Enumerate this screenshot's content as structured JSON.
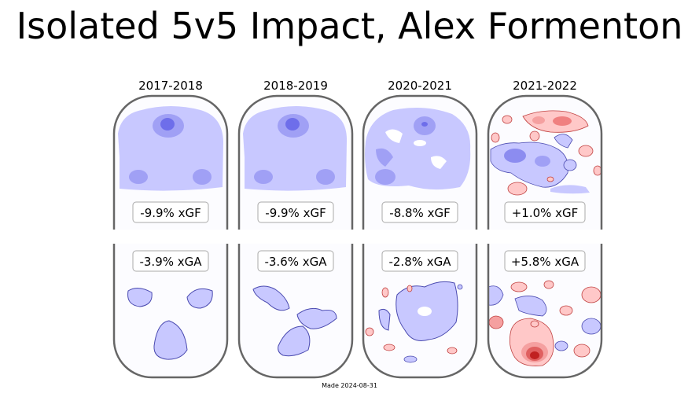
{
  "title": "Isolated 5v5 Impact, Alex Formenton",
  "footer": "Made 2024-08-31",
  "colors": {
    "negative": "#c8c8ff",
    "negative_dark": "#8c8cf0",
    "positive": "#ffc8c8",
    "positive_dark": "#e06060",
    "rink": "#666666"
  },
  "chart_data": [
    {
      "type": "heatmap",
      "season": "2017-2018",
      "xgf_label": "-9.9% xGF",
      "xga_label": "-3.9% xGA"
    },
    {
      "type": "heatmap",
      "season": "2018-2019",
      "xgf_label": "-9.9% xGF",
      "xga_label": "-3.6% xGA"
    },
    {
      "type": "heatmap",
      "season": "2020-2021",
      "xgf_label": "-8.8% xGF",
      "xga_label": "-2.8% xGA"
    },
    {
      "type": "heatmap",
      "season": "2021-2022",
      "xgf_label": "+1.0% xGF",
      "xga_label": "+5.8% xGA"
    }
  ]
}
